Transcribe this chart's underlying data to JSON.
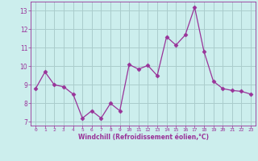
{
  "x": [
    0,
    1,
    2,
    3,
    4,
    5,
    6,
    7,
    8,
    9,
    10,
    11,
    12,
    13,
    14,
    15,
    16,
    17,
    18,
    19,
    20,
    21,
    22,
    23
  ],
  "y": [
    8.8,
    9.7,
    9.0,
    8.9,
    8.5,
    7.2,
    7.6,
    7.2,
    8.0,
    7.6,
    10.1,
    9.85,
    10.05,
    9.5,
    11.6,
    11.15,
    11.7,
    13.2,
    10.8,
    9.2,
    8.8,
    8.7,
    8.65,
    8.5
  ],
  "line_color": "#993399",
  "marker": "D",
  "marker_size": 2.5,
  "bg_color": "#cceeed",
  "grid_color": "#aacccc",
  "xlabel": "Windchill (Refroidissement éolien,°C)",
  "xlabel_color": "#993399",
  "tick_color": "#993399",
  "ylim": [
    6.8,
    13.5
  ],
  "xlim": [
    -0.5,
    23.5
  ],
  "yticks": [
    7,
    8,
    9,
    10,
    11,
    12,
    13
  ],
  "xticks": [
    0,
    1,
    2,
    3,
    4,
    5,
    6,
    7,
    8,
    9,
    10,
    11,
    12,
    13,
    14,
    15,
    16,
    17,
    18,
    19,
    20,
    21,
    22,
    23
  ],
  "xtick_labels": [
    "0",
    "1",
    "2",
    "3",
    "4",
    "5",
    "6",
    "7",
    "8",
    "9",
    "10",
    "11",
    "12",
    "13",
    "14",
    "15",
    "16",
    "17",
    "18",
    "19",
    "20",
    "21",
    "22",
    "23"
  ]
}
